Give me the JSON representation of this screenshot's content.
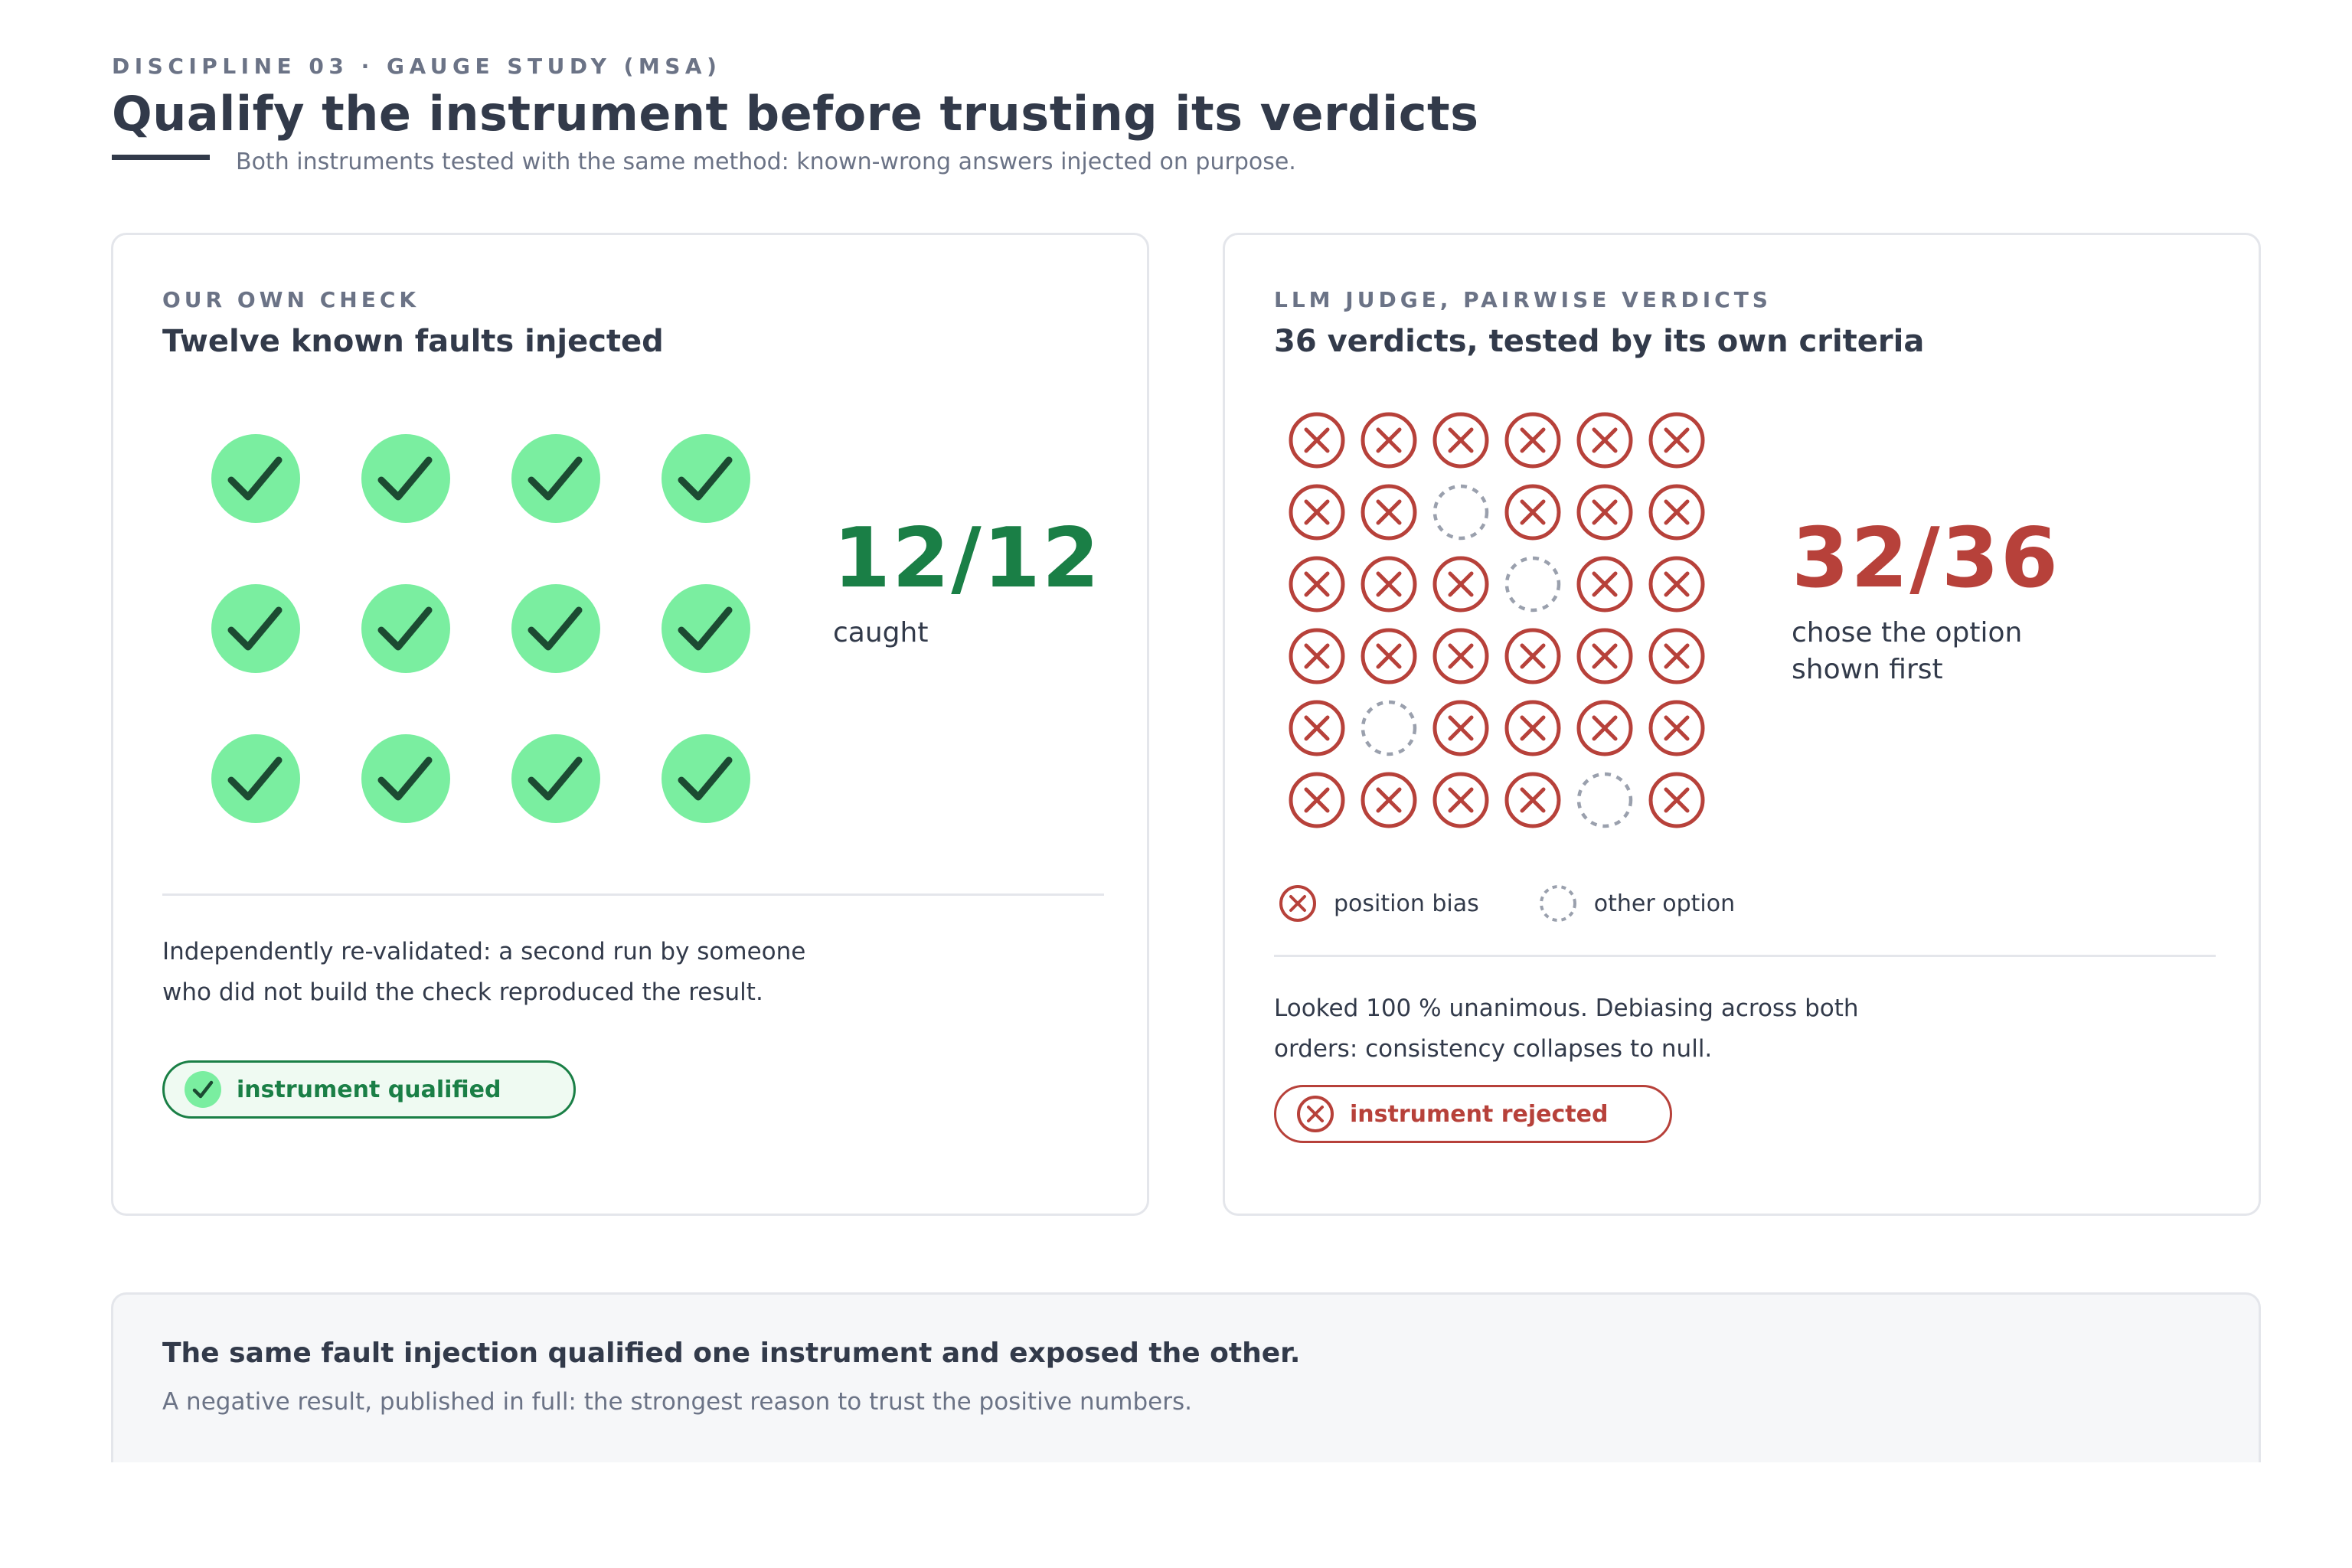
{
  "header": {
    "eyebrow": "DISCIPLINE 03 · GAUGE STUDY (MSA)",
    "title": "Qualify the instrument before trusting its verdicts",
    "subtitle": "Both instruments tested with the same method: known-wrong answers injected on purpose."
  },
  "left_card": {
    "label": "OUR OWN CHECK",
    "heading": "Twelve known faults injected",
    "caught": 12,
    "total": 12,
    "score_text": "12/12",
    "caption": "caught",
    "body_line1": "Independently re-validated: a second run by someone",
    "body_line2": "who did not build the check reproduced the result.",
    "badge": "instrument qualified",
    "icons": {
      "fault": "check-circle-icon",
      "badge": "check-circle-icon"
    }
  },
  "right_card": {
    "label": "LLM JUDGE, PAIRWISE VERDICTS",
    "heading": "36 verdicts, tested by its own criteria",
    "score_text": "32/36",
    "caption": "chose the option shown first",
    "grid_rows": [
      [
        "bias",
        "bias",
        "bias",
        "bias",
        "bias",
        "bias"
      ],
      [
        "bias",
        "bias",
        "other",
        "bias",
        "bias",
        "bias"
      ],
      [
        "bias",
        "bias",
        "bias",
        "other",
        "bias",
        "bias"
      ],
      [
        "bias",
        "bias",
        "bias",
        "bias",
        "bias",
        "bias"
      ],
      [
        "bias",
        "other",
        "bias",
        "bias",
        "bias",
        "bias"
      ],
      [
        "bias",
        "bias",
        "bias",
        "bias",
        "other",
        "bias"
      ]
    ],
    "legend_bias": "position bias",
    "legend_other": "other option",
    "body_line1": "Looked 100 % unanimous. Debiasing across both",
    "body_line2": "orders: consistency collapses to null.",
    "badge": "instrument rejected",
    "icons": {
      "bias": "x-circle-icon",
      "other": "dashed-circle-icon"
    }
  },
  "footer": {
    "title": "The same fault injection qualified one instrument and exposed the other.",
    "subtitle": "A negative result, published in full: the strongest reason to trust the positive numbers."
  },
  "colors": {
    "ink": "#323a4a",
    "muted": "#6b7386",
    "green": "#1a7f46",
    "green_fill": "#7aeea0",
    "red": "#b7413a",
    "dashed": "#9aa0ad",
    "rule": "#e4e6eb"
  }
}
